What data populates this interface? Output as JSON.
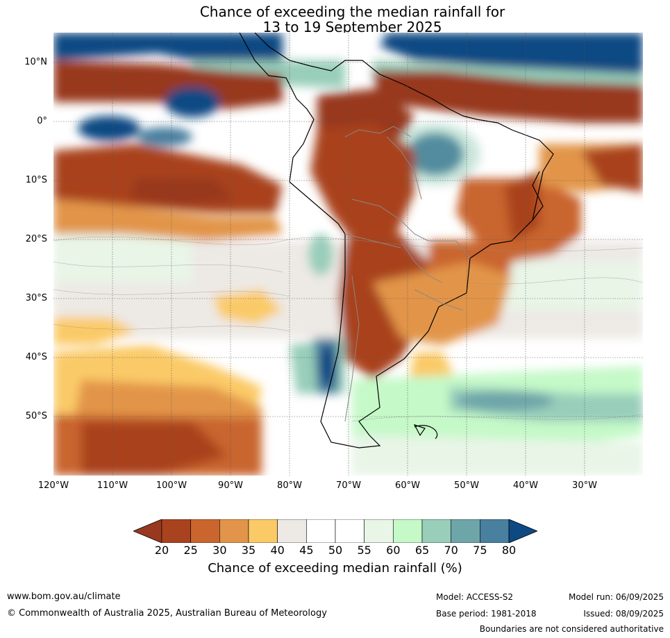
{
  "title": {
    "line1": "Chance of exceeding the median rainfall for",
    "line2": "13 to 19 September 2025"
  },
  "map": {
    "lat_labels": [
      "10°N",
      "0°",
      "10°S",
      "20°S",
      "30°S",
      "40°S",
      "50°S"
    ],
    "lon_labels": [
      "120°W",
      "110°W",
      "100°W",
      "90°W",
      "80°W",
      "70°W",
      "60°W",
      "50°W",
      "40°W",
      "30°W"
    ]
  },
  "colorbar": {
    "ticks": [
      "20",
      "25",
      "30",
      "35",
      "40",
      "45",
      "50",
      "55",
      "60",
      "65",
      "70",
      "75",
      "80"
    ],
    "colors": [
      "#a9431f",
      "#c9652d",
      "#e2954a",
      "#fbca67",
      "#ede9e5",
      "#ffffff",
      "#ffffff",
      "#e8f5e7",
      "#c5f9c8",
      "#98ceba",
      "#6ea5a9",
      "#497f9f"
    ],
    "under_color": "#98391f",
    "over_color": "#0d4a83",
    "label": "Chance of exceeding median rainfall (%)"
  },
  "footer": {
    "website": "www.bom.gov.au/climate",
    "copyright": "© Commonwealth of Australia 2025, Australian Bureau of Meteorology",
    "model": "Model: ACCESS-S2",
    "base_period": "Base period: 1981-2018",
    "model_run": "Model run: 06/09/2025",
    "issued": "Issued: 08/09/2025",
    "disclaimer": "Boundaries are not considered authoritative"
  }
}
